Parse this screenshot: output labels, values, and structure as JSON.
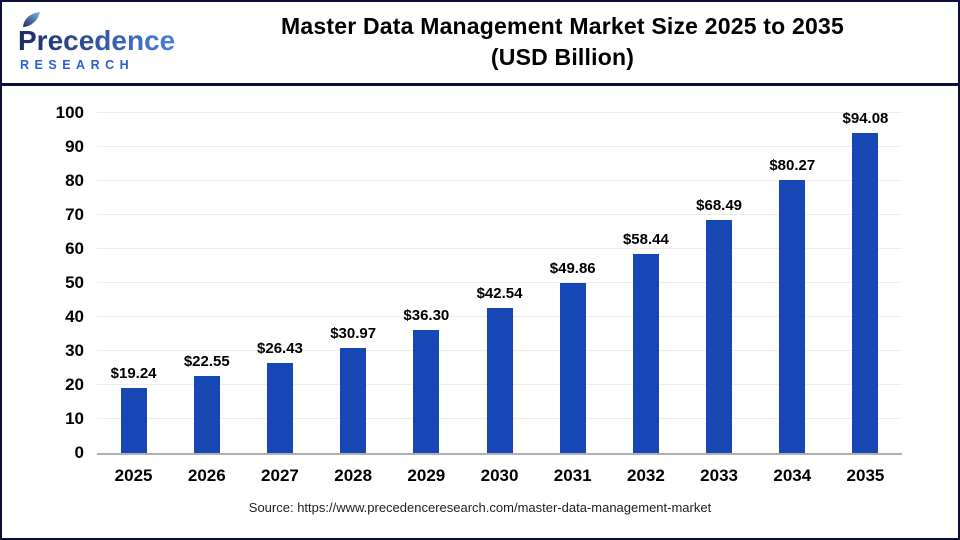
{
  "header": {
    "logo": {
      "wordmark": "Precedence",
      "subtext": "RESEARCH"
    },
    "title_line1": "Master Data Management Market Size 2025 to 2035",
    "title_line2": "(USD Billion)"
  },
  "chart_data": {
    "type": "bar",
    "title": "Master Data Management Market Size 2025 to 2035 (USD Billion)",
    "categories": [
      "2025",
      "2026",
      "2027",
      "2028",
      "2029",
      "2030",
      "2031",
      "2032",
      "2033",
      "2034",
      "2035"
    ],
    "values": [
      19.24,
      22.55,
      26.43,
      30.97,
      36.3,
      42.54,
      49.86,
      58.44,
      68.49,
      80.27,
      94.08
    ],
    "value_labels": [
      "$19.24",
      "$22.55",
      "$26.43",
      "$30.97",
      "$36.30",
      "$42.54",
      "$49.86",
      "$58.44",
      "$68.49",
      "$80.27",
      "$94.08"
    ],
    "xlabel": "",
    "ylabel": "",
    "ylim": [
      0,
      100
    ],
    "ytick_step": 10,
    "grid": true,
    "legend": false,
    "bar_color": "#1747B4"
  },
  "footer": {
    "source": "Source: https://www.precedenceresearch.com/master-data-management-market"
  },
  "colors": {
    "accent_navy": "#0c1038",
    "bar_blue": "#1747B4",
    "logo_dark": "#1e2a63",
    "logo_light": "#4a80dd",
    "leaf_light": "#7db9ea",
    "research_blue": "#2e5fd2"
  }
}
